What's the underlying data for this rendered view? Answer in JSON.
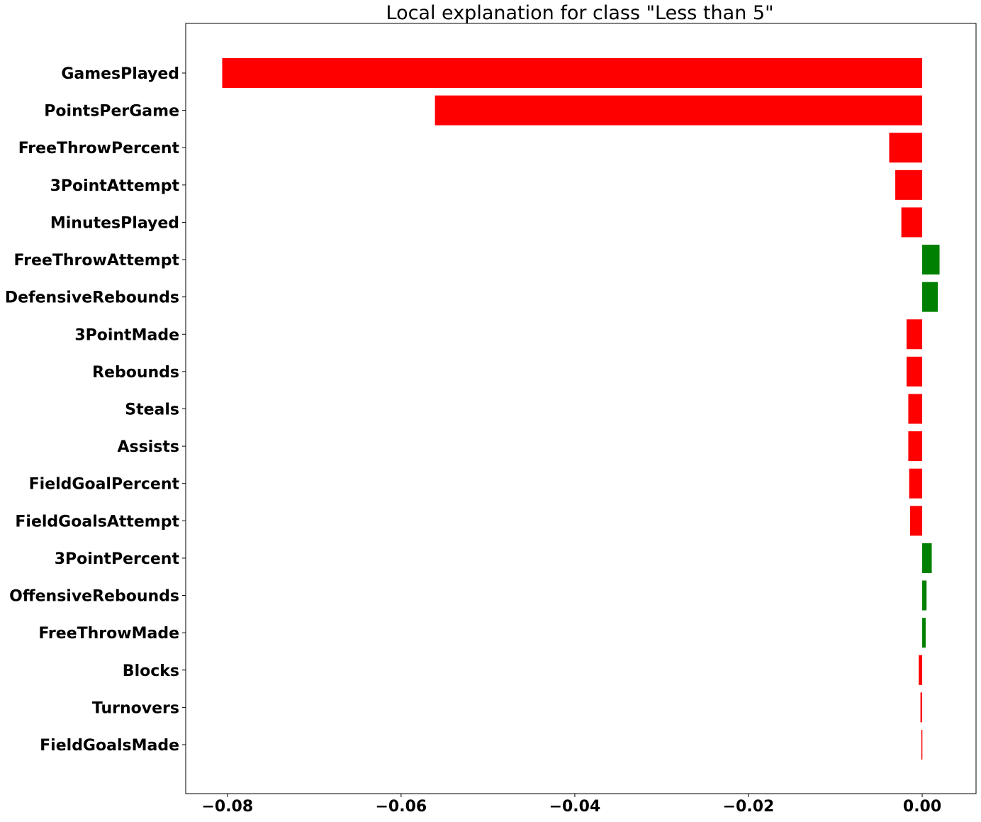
{
  "chart_data": {
    "type": "bar",
    "orientation": "horizontal",
    "title": "Local explanation for class \"Less than 5\"",
    "xlabel": "",
    "ylabel": "",
    "xlim": [
      -0.0848,
      0.0062
    ],
    "xticks": [
      {
        "value": -0.08,
        "label": "−0.08"
      },
      {
        "value": -0.06,
        "label": "−0.06"
      },
      {
        "value": -0.04,
        "label": "−0.04"
      },
      {
        "value": -0.02,
        "label": "−0.02"
      },
      {
        "value": 0.0,
        "label": "0.00"
      }
    ],
    "grid": false,
    "colors": {
      "positive": "#008000",
      "negative": "#ff0000"
    },
    "categories": [
      "GamesPlayed",
      "PointsPerGame",
      "FreeThrowPercent",
      "3PointAttempt",
      "MinutesPlayed",
      "FreeThrowAttempt",
      "DefensiveRebounds",
      "3PointMade",
      "Rebounds",
      "Steals",
      "Assists",
      "FieldGoalPercent",
      "FieldGoalsAttempt",
      "3PointPercent",
      "OffensiveRebounds",
      "FreeThrowMade",
      "Blocks",
      "Turnovers",
      "FieldGoalsMade"
    ],
    "values": [
      -0.0806,
      -0.0561,
      -0.0038,
      -0.0031,
      -0.0024,
      0.002,
      0.0018,
      -0.0018,
      -0.0018,
      -0.0016,
      -0.0016,
      -0.0015,
      -0.0014,
      0.0011,
      0.0005,
      0.0004,
      -0.0004,
      -0.0002,
      -0.0001
    ]
  }
}
